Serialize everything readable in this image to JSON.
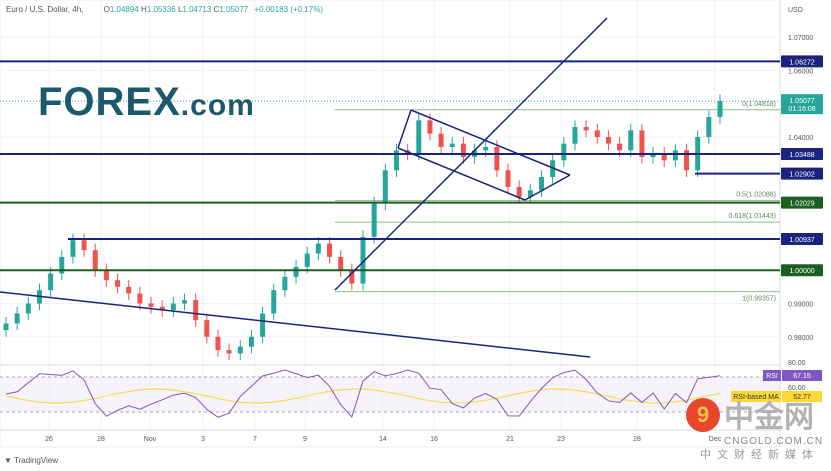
{
  "header": {
    "symbol": "Euro / U.S. Dollar, 4h,",
    "open_label": "O",
    "open": "1.04894",
    "high_label": "H",
    "high": "1.05336",
    "low_label": "L",
    "low": "1.04713",
    "close_label": "C",
    "close": "1.05077",
    "change": "+0.00183 (+0.17%)"
  },
  "logo": {
    "main": "FOREX",
    "suffix": ".com"
  },
  "footer": {
    "brand": "TradingView"
  },
  "watermark": {
    "chinese": "中金网",
    "url": "CNGOLD.COM.CN",
    "sub": "中文财经新媒体"
  },
  "colors": {
    "blue_line": "#1a237e",
    "green_line": "#1b5e20",
    "up": "#26a69a",
    "down": "#ef5350",
    "rsi": "#7e57c2",
    "rsi_ma": "#fdd835"
  },
  "chart_data": {
    "type": "candlestick",
    "currency_label": "USD",
    "y_ticks": [
      "1.07000",
      "1.06000",
      "1.04000",
      "0.99000",
      "0.98000"
    ],
    "y_tick_values": [
      1.07,
      1.06,
      1.04,
      0.99,
      0.98
    ],
    "x_ticks": [
      "26",
      "28",
      "Nov",
      "3",
      "7",
      "9",
      "14",
      "16",
      "21",
      "23",
      "28",
      "Dec"
    ],
    "closes": [
      0.984,
      0.987,
      0.99,
      0.994,
      0.999,
      1.004,
      1.009,
      1.006,
      1.0,
      0.997,
      0.995,
      0.993,
      0.99,
      0.989,
      0.988,
      0.99,
      0.991,
      0.985,
      0.98,
      0.976,
      0.975,
      0.977,
      0.98,
      0.987,
      0.994,
      0.998,
      1.001,
      1.005,
      1.008,
      1.004,
      1.0,
      0.996,
      1.01,
      1.02,
      1.03,
      1.036,
      1.035,
      1.045,
      1.041,
      1.037,
      1.038,
      1.034,
      1.036,
      1.037,
      1.03,
      1.025,
      1.022,
      1.024,
      1.028,
      1.033,
      1.038,
      1.043,
      1.042,
      1.04,
      1.038,
      1.036,
      1.042,
      1.034,
      1.035,
      1.033,
      1.036,
      1.03,
      1.04,
      1.046,
      1.05077
    ],
    "levels": [
      {
        "label": "1.06272",
        "value": 1.06272,
        "color": "blue"
      },
      {
        "label": "1.03488",
        "value": 1.03488,
        "color": "blue"
      },
      {
        "label": "1.02902",
        "value": 1.02902,
        "color": "blue"
      },
      {
        "label": "1.02029",
        "value": 1.02029,
        "color": "green"
      },
      {
        "label": "1.00937",
        "value": 1.00937,
        "color": "blue"
      },
      {
        "label": "1.00000",
        "value": 1.0,
        "color": "green"
      }
    ],
    "fib": [
      {
        "label": "0(1.04818)",
        "value": 1.04818
      },
      {
        "label": "0.5(1.02088)",
        "value": 1.02088
      },
      {
        "label": "0.618(1.01443)",
        "value": 1.01443
      },
      {
        "label": "1(0.99357)",
        "value": 0.99357
      }
    ],
    "last_price": {
      "value": "1.05077",
      "timer": "01:16:08"
    },
    "rsi": {
      "ticks": [
        "80.00",
        "60.00"
      ],
      "rsi_label": "RSI",
      "rsi_value": "67.15",
      "ma_label": "RSI-based MA",
      "ma_value": "52.77"
    }
  }
}
